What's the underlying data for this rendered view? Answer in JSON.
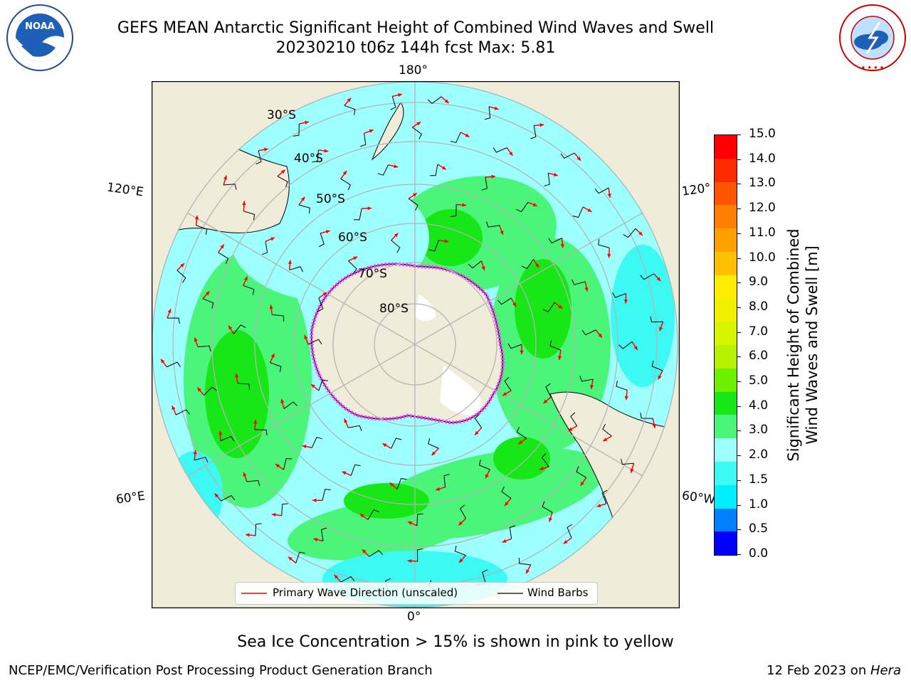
{
  "header": {
    "title_line1": "GEFS MEAN Antarctic Significant Height of Combined Wind Waves and Swell",
    "title_line2": "20230210 t06z 144h fcst   Max: 5.81"
  },
  "logos": {
    "left": "NOAA",
    "right": "NATIONAL WEATHER SERVICE"
  },
  "map": {
    "projection": "south-polar-stereographic",
    "lon_labels": {
      "top": "180°",
      "bottom": "0°",
      "left_upper": "120°E",
      "left_lower": "60°E",
      "right_upper": "120°",
      "right_lower": "60°W"
    },
    "lat_labels": [
      "30°S",
      "40°S",
      "50°S",
      "60°S",
      "70°S",
      "80°S"
    ],
    "colors": {
      "land": "#efedda",
      "ocean_low": "#9effff",
      "ocean_mid": "#3cfaf3",
      "ocean_high": "#4bf57a",
      "ocean_peak": "#17e617",
      "ice": "#ff33ff",
      "arrow": "#ff0000",
      "barb": "#000000",
      "graticule": "#b4b4b4"
    }
  },
  "legend": {
    "primary_wave": "Primary Wave Direction (unscaled)",
    "wind_barbs": "Wind Barbs"
  },
  "colorbar": {
    "label_line1": "Significant Height of Combined",
    "label_line2": "Wind Waves and Swell [m]",
    "ticks": [
      "15.0",
      "14.0",
      "13.0",
      "12.0",
      "11.0",
      "10.0",
      "9.0",
      "8.0",
      "7.0",
      "6.0",
      "5.0",
      "4.0",
      "3.0",
      "2.0",
      "1.5",
      "1.0",
      "0.5",
      "0.0"
    ],
    "colors_top_to_bottom": [
      "#ff0000",
      "#ff2a00",
      "#ff5500",
      "#ff7f00",
      "#ffa000",
      "#ffc000",
      "#ffee00",
      "#f0f000",
      "#d8f500",
      "#b7f200",
      "#6cf000",
      "#17e617",
      "#4bf57a",
      "#9effff",
      "#3cfaf3",
      "#00eefe",
      "#0080ff",
      "#0000ff"
    ]
  },
  "note": "Sea Ice Concentration > 15% is shown in pink to yellow",
  "footer": {
    "left": "NCEP/EMC/Verification Post Processing Product Generation Branch",
    "right_date": "12 Feb 2023 on ",
    "right_host": "Hera"
  }
}
